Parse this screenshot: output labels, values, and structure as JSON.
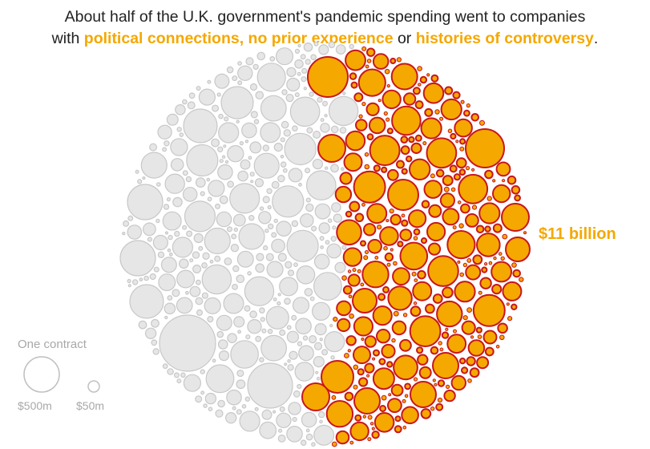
{
  "headline": {
    "line1": "About half of the U.K. government's pandemic spending went to companies",
    "line2_start": "with ",
    "highlight1": "political connections, no prior experience",
    "line2_mid": " or ",
    "highlight2": "histories of controversy",
    "line2_end": "."
  },
  "chart_data": {
    "type": "bubble",
    "unit": "one contract",
    "groups": [
      {
        "label": "",
        "color": "#d9d9d9",
        "stroke": "#c8c8c8"
      },
      {
        "label": "$11 billion",
        "value_text": "$11 billion",
        "color": "#f5a800",
        "stroke": "#c8161d"
      }
    ],
    "annotation": "$11 billion",
    "legend": {
      "title": "One contract",
      "sizes": [
        {
          "label": "$500m",
          "value": 500
        },
        {
          "label": "$50m",
          "value": 50
        }
      ]
    },
    "colors": {
      "flagged_fill": "#f5a800",
      "flagged_stroke": "#c8161d",
      "other_fill": "#e6e6e6",
      "other_stroke": "#c8c8c8"
    }
  }
}
